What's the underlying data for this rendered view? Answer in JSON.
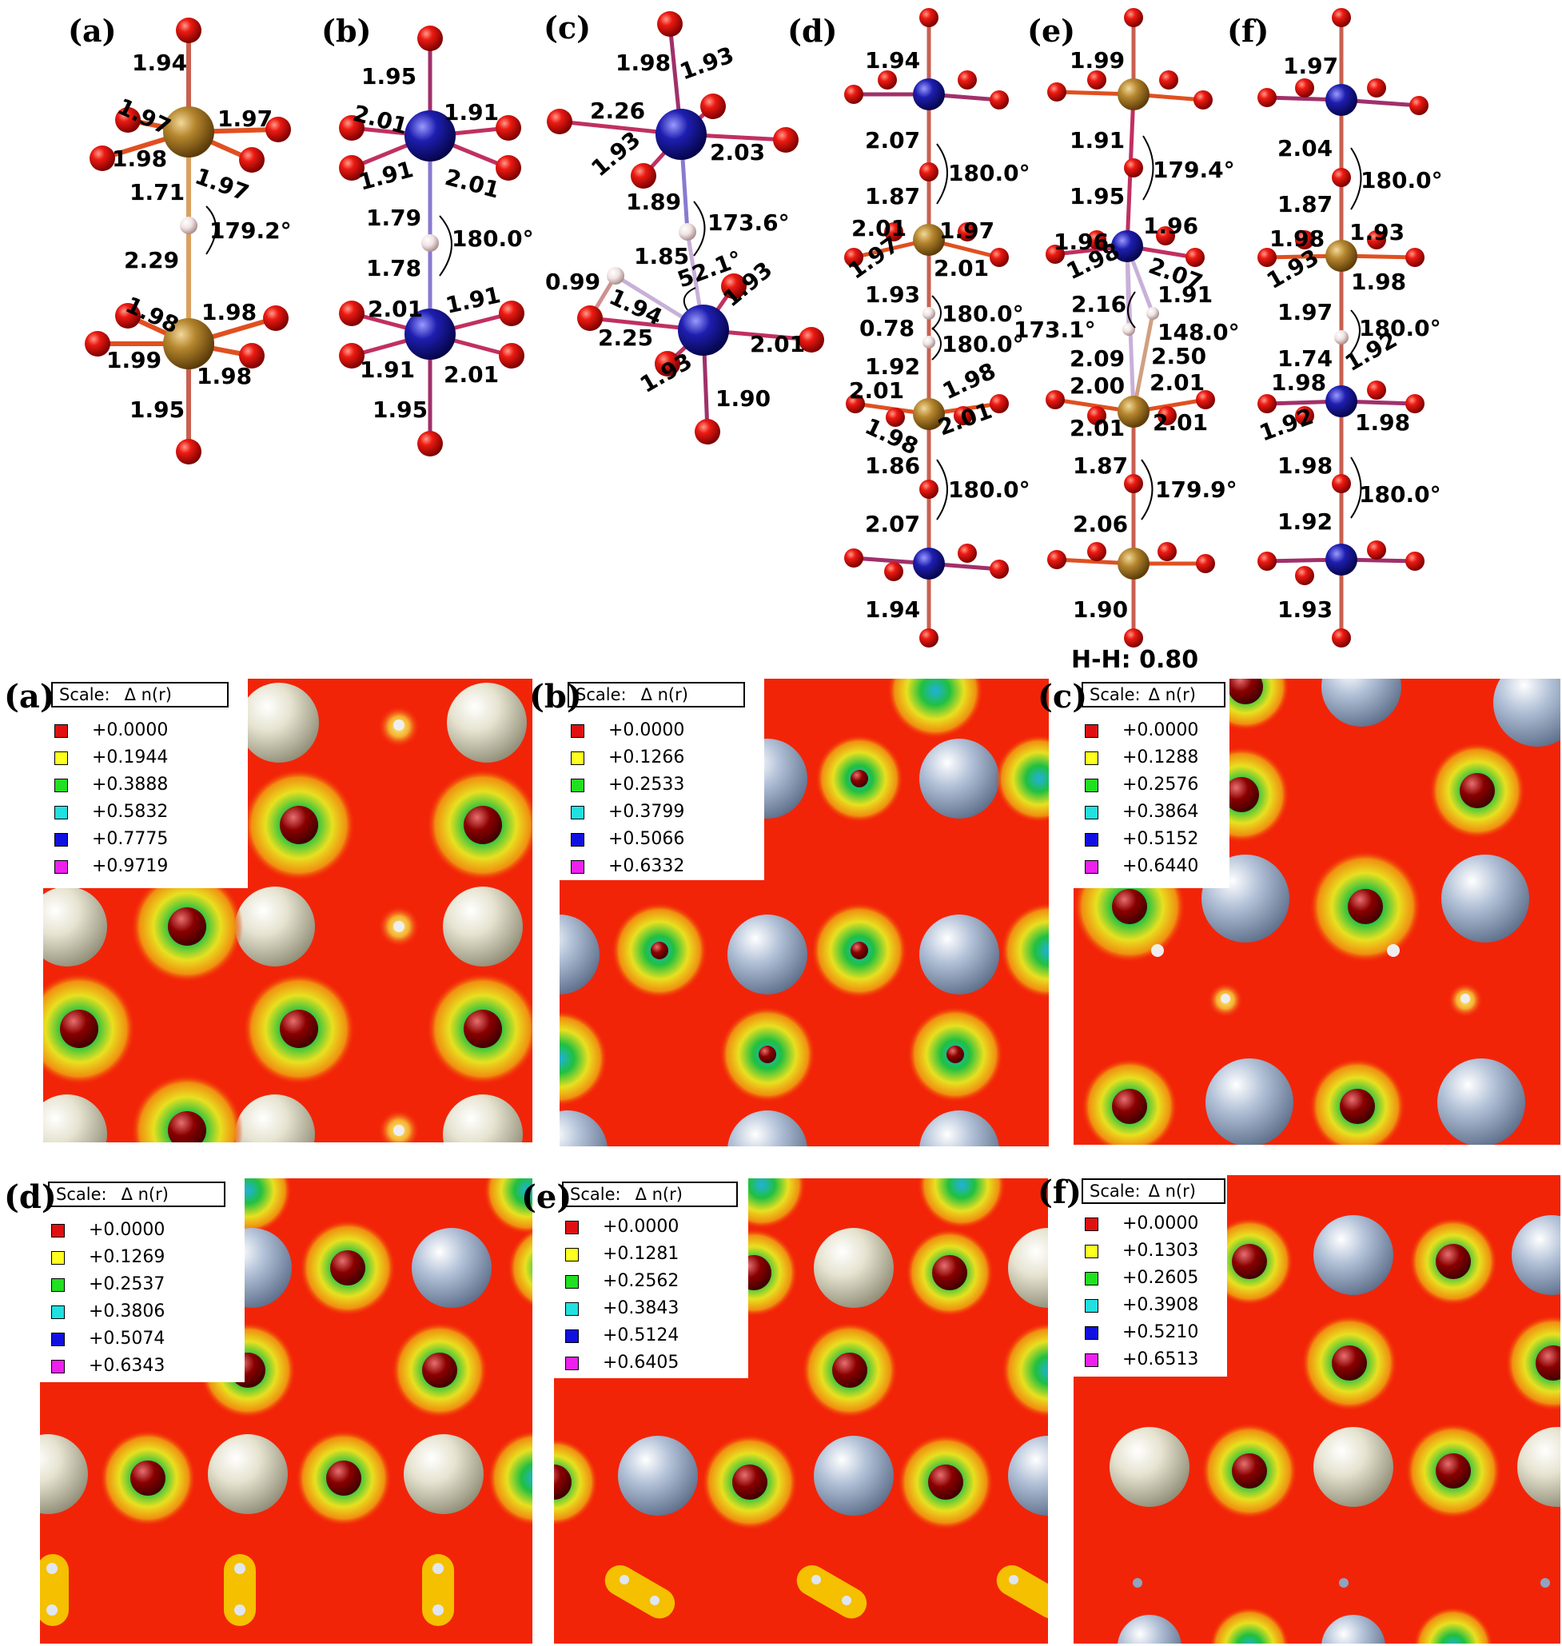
{
  "top_panels": [
    {
      "label": "(a)",
      "angle": "179.2°",
      "bonds": [
        "1.94",
        "1.97",
        "1.97",
        "1.98",
        "1.97",
        "1.71",
        "2.29",
        "1.98",
        "1.98",
        "1.99",
        "1.98",
        "1.95"
      ]
    },
    {
      "label": "(b)",
      "angle": "180.0°",
      "bonds": [
        "1.95",
        "2.01",
        "1.91",
        "1.91",
        "2.01",
        "1.79",
        "1.78",
        "2.01",
        "1.91",
        "1.91",
        "2.01",
        "1.95"
      ]
    },
    {
      "label": "(c)",
      "angle": "173.6°",
      "bonds": [
        "1.98",
        "1.93",
        "2.26",
        "1.93",
        "2.03",
        "1.89",
        "1.85",
        "0.99",
        "1.94",
        "52.1°",
        "1.93",
        "2.25",
        "2.01",
        "1.93",
        "1.90"
      ]
    },
    {
      "label": "(d)",
      "angles": [
        "180.0°",
        "180.0°",
        "180.0°",
        "180.0°"
      ],
      "bonds": [
        "1.94",
        "2.07",
        "1.87",
        "2.01",
        "1.97",
        "1.97",
        "2.01",
        "1.93",
        "0.78",
        "1.92",
        "2.01",
        "1.98",
        "1.98",
        "2.01",
        "1.86",
        "2.07",
        "1.94"
      ]
    },
    {
      "label": "(e)",
      "angles": [
        "179.4°",
        "173.1°",
        "148.0°",
        "179.9°"
      ],
      "bonds": [
        "1.99",
        "1.91",
        "1.95",
        "1.96",
        "1.96",
        "1.98",
        "2.07",
        "2.16",
        "1.91",
        "2.09",
        "2.50",
        "2.00",
        "2.01",
        "2.01",
        "2.01",
        "1.87",
        "2.06",
        "1.90"
      ],
      "note": "H-H: 0.80"
    },
    {
      "label": "(f)",
      "angles": [
        "180.0°",
        "180.0°",
        "180.0°"
      ],
      "bonds": [
        "1.97",
        "2.04",
        "1.87",
        "1.98",
        "1.93",
        "1.93",
        "1.98",
        "1.97",
        "1.74",
        "1.92",
        "1.98",
        "1.92",
        "1.98",
        "1.98",
        "1.92",
        "1.93"
      ]
    }
  ],
  "maps": [
    {
      "label": "(a)",
      "scale": "Scale:",
      "dn": "Δ n(r)",
      "levels": [
        "+0.0000",
        "+0.1944",
        "+0.3888",
        "+0.5832",
        "+0.7775",
        "+0.9719"
      ]
    },
    {
      "label": "(b)",
      "scale": "Scale:",
      "dn": "Δ n(r)",
      "levels": [
        "+0.0000",
        "+0.1266",
        "+0.2533",
        "+0.3799",
        "+0.5066",
        "+0.6332"
      ]
    },
    {
      "label": "(c)",
      "scale": "Scale:",
      "dn": "Δ n(r)",
      "levels": [
        "+0.0000",
        "+0.1288",
        "+0.2576",
        "+0.3864",
        "+0.5152",
        "+0.6440"
      ]
    },
    {
      "label": "(d)",
      "scale": "Scale:",
      "dn": "Δ n(r)",
      "levels": [
        "+0.0000",
        "+0.1269",
        "+0.2537",
        "+0.3806",
        "+0.5074",
        "+0.6343"
      ]
    },
    {
      "label": "(e)",
      "scale": "Scale:",
      "dn": "Δ n(r)",
      "levels": [
        "+0.0000",
        "+0.1281",
        "+0.2562",
        "+0.3843",
        "+0.5124",
        "+0.6405"
      ]
    },
    {
      "label": "(f)",
      "scale": "Scale:",
      "dn": "Δ n(r)",
      "levels": [
        "+0.0000",
        "+0.1303",
        "+0.2605",
        "+0.3908",
        "+0.5210",
        "+0.6513"
      ]
    }
  ],
  "legend_colors": [
    "#e01010",
    "#ffff20",
    "#20e020",
    "#20e0e0",
    "#1010e0",
    "#ee20ee"
  ],
  "atom_colors": {
    "gold": "#b08530",
    "blue": "#1a1aa8",
    "oxygen": "#d81010",
    "hydrogen": "#f0e4e4"
  }
}
